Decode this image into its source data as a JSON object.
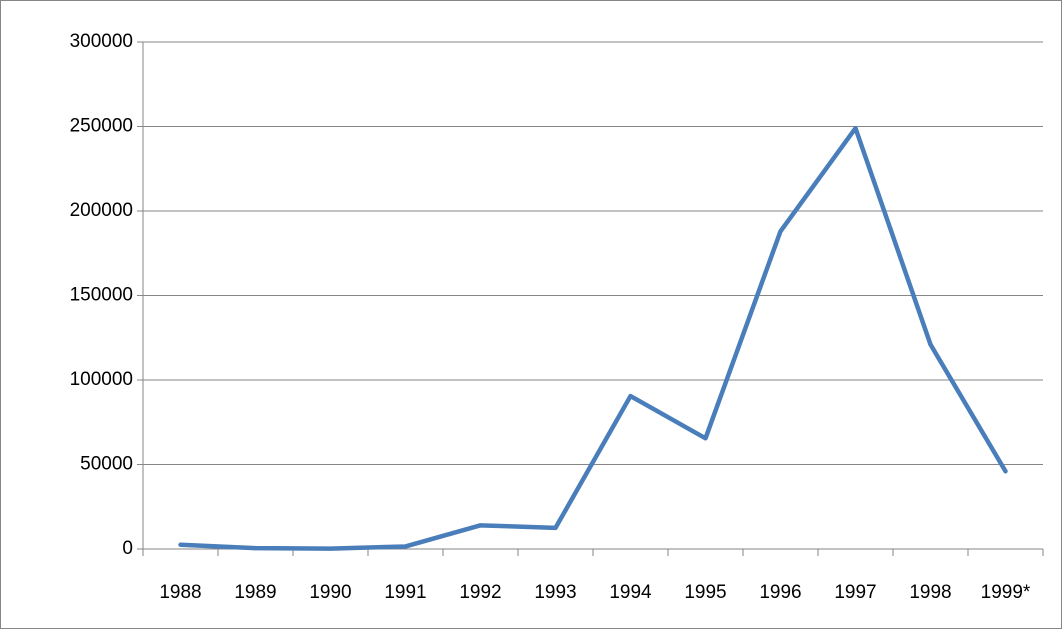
{
  "chart_data": {
    "type": "line",
    "categories": [
      "1988",
      "1989",
      "1990",
      "1991",
      "1992",
      "1993",
      "1994",
      "1995",
      "1996",
      "1997",
      "1998",
      "1999*"
    ],
    "values": [
      2500,
      500,
      200,
      1500,
      14000,
      12500,
      90500,
      65500,
      188000,
      249000,
      121000,
      46000
    ],
    "color": "#4a7ebb",
    "ylim": [
      0,
      300000
    ],
    "yticks": [
      0,
      50000,
      100000,
      150000,
      200000,
      250000,
      300000
    ],
    "grid": true
  }
}
